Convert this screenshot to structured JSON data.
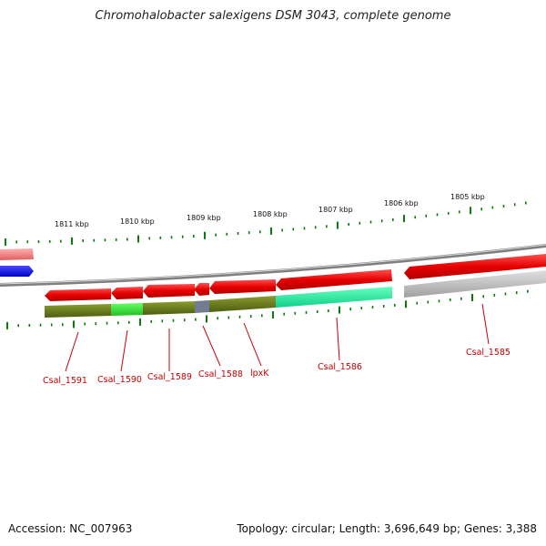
{
  "title": "Chromohalobacter salexigens DSM 3043, complete genome",
  "footer": {
    "accession": "Accession: NC_007963",
    "summary": "Topology: circular; Length: 3,696,649 bp; Genes: 3,388"
  },
  "ruler": {
    "labels": [
      "1811 kbp",
      "1810 kbp",
      "1809 kbp",
      "1808 kbp",
      "1807 kbp",
      "1806 kbp",
      "1805 kbp"
    ]
  },
  "genes": [
    {
      "name": "Csal_1591"
    },
    {
      "name": "Csal_1590"
    },
    {
      "name": "Csal_1589"
    },
    {
      "name": "Csal_1588"
    },
    {
      "name": "lpxK"
    },
    {
      "name": "Csal_1586"
    },
    {
      "name": "Csal_1585"
    }
  ],
  "colors": {
    "cds": "#e60000",
    "backbone": "#8c8c8c",
    "ticks": "#0a7a0a",
    "label": "#cc0000",
    "blue_feature": "#0000ee",
    "pink_feature": "#f08080",
    "olive": "#6b7d1a",
    "bright_green": "#33dd33",
    "mint": "#22f0a0",
    "slate": "#707c90",
    "grey_track": "#b8b8b8"
  }
}
